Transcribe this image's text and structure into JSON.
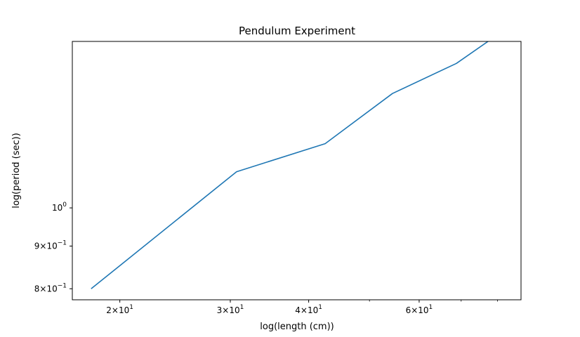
{
  "chart_data": {
    "type": "line",
    "title": "Pendulum Experiment",
    "xlabel": "log(length (cm))",
    "ylabel": "log(period (sec))",
    "xscale": "log",
    "yscale": "log",
    "grid": false,
    "xlim": [
      16.8,
      87.2
    ],
    "ylim": [
      0.776,
      1.583
    ],
    "x_ticks": [
      {
        "value": 20,
        "mantissa": "2",
        "exponent": "1"
      },
      {
        "value": 30,
        "mantissa": "3",
        "exponent": "1"
      },
      {
        "value": 40,
        "mantissa": "4",
        "exponent": "1"
      },
      {
        "value": 60,
        "mantissa": "6",
        "exponent": "1"
      }
    ],
    "x_minor_ticks": [
      50,
      70,
      80
    ],
    "y_ticks": [
      {
        "value": 0.8,
        "mantissa": "8",
        "exponent": "−1"
      },
      {
        "value": 0.9,
        "mantissa": "9",
        "exponent": "−1"
      },
      {
        "value": 1.0,
        "mantissa": "",
        "exponent": "0"
      }
    ],
    "series": [
      {
        "color": "#1f77b4",
        "x": [
          18.0,
          30.7,
          42.5,
          54.4,
          68.8,
          81.1
        ],
        "y": [
          0.8,
          1.105,
          1.194,
          1.371,
          1.49,
          1.624
        ]
      }
    ]
  }
}
